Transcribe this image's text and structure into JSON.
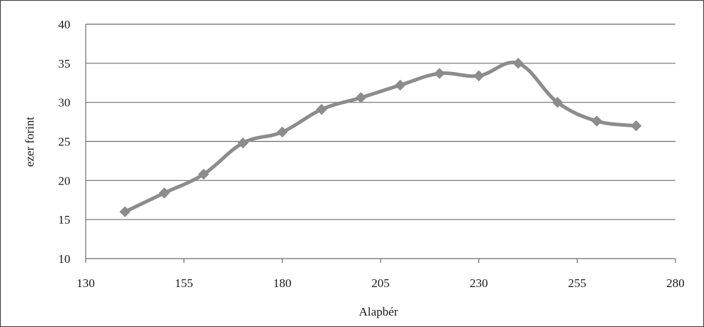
{
  "chart_data": {
    "type": "line",
    "title": "",
    "xlabel": "Alapbér",
    "ylabel": "ezer forint",
    "xlim": [
      130,
      280
    ],
    "ylim": [
      10,
      40
    ],
    "xticks": [
      "130",
      "155",
      "180",
      "205",
      "230",
      "255",
      "280"
    ],
    "yticks": [
      "10",
      "15",
      "20",
      "25",
      "30",
      "35",
      "40"
    ],
    "grid": "horizontal",
    "legend": "none",
    "series": [
      {
        "color": "#8c8c8c",
        "marker": "diamond",
        "x": [
          140,
          150,
          160,
          170,
          180,
          190,
          200,
          210,
          220,
          230,
          240,
          250,
          260,
          270
        ],
        "y": [
          16.0,
          18.4,
          20.8,
          24.8,
          26.2,
          29.1,
          30.6,
          32.2,
          33.7,
          33.4,
          35.0,
          30.0,
          27.6,
          27.0
        ]
      }
    ]
  }
}
